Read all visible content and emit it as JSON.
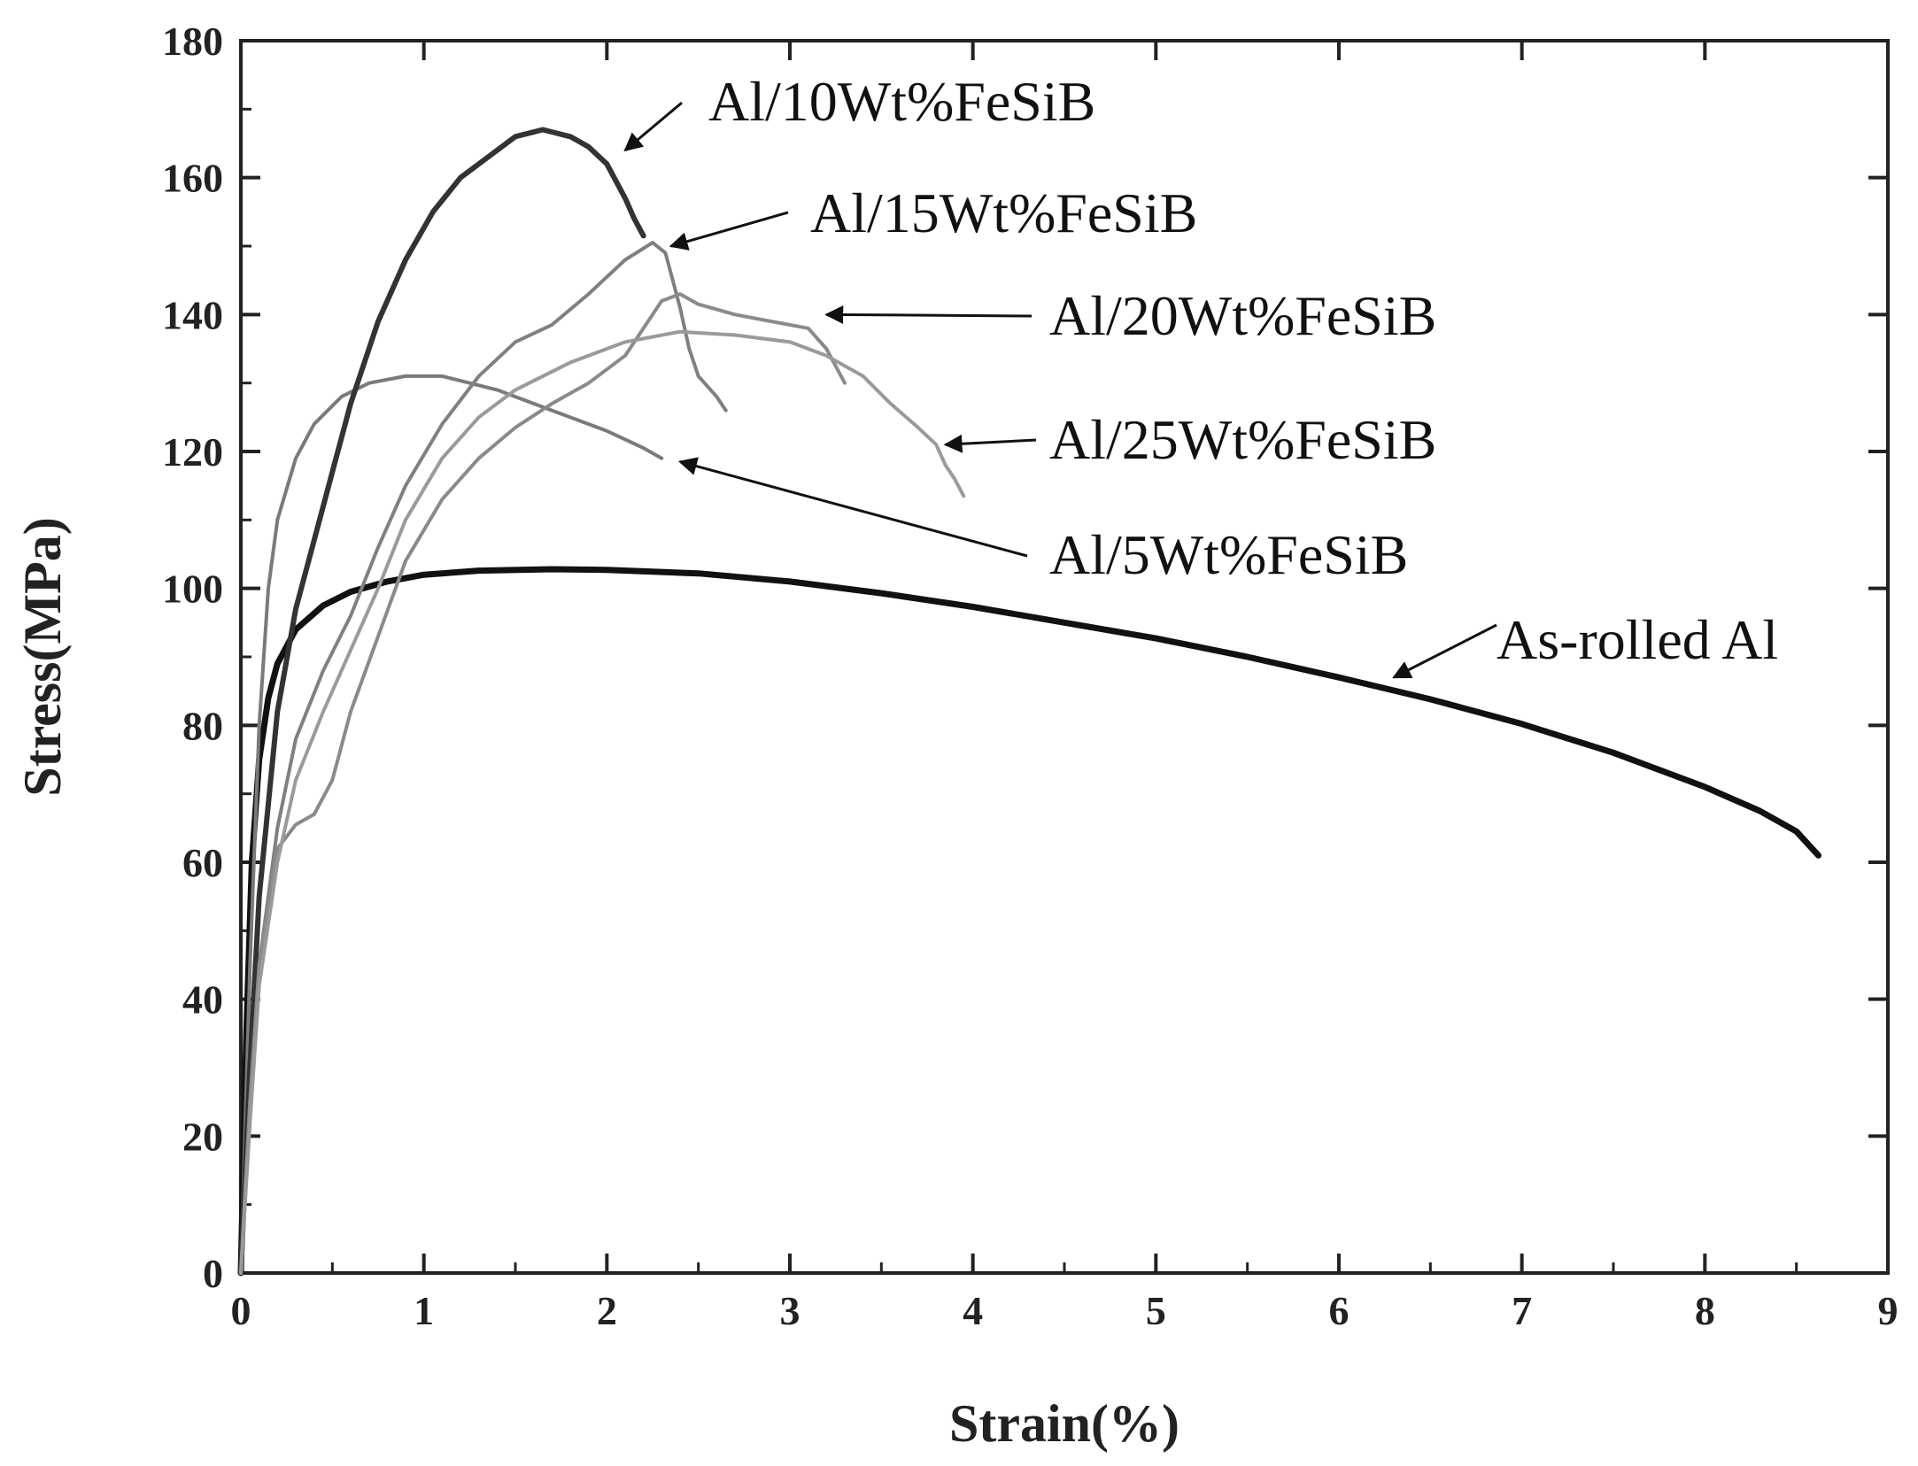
{
  "chart_data": {
    "type": "line",
    "xlabel": "Strain(%)",
    "ylabel": "Stress(MPa)",
    "xlim": [
      0,
      9
    ],
    "ylim": [
      0,
      180
    ],
    "xticks": [
      0,
      1,
      2,
      3,
      4,
      5,
      6,
      7,
      8,
      9
    ],
    "yticks": [
      0,
      20,
      40,
      60,
      80,
      100,
      120,
      140,
      160,
      180
    ],
    "grid": false,
    "legend": "none",
    "series": [
      {
        "name": "As-rolled Al",
        "color": "#111111",
        "x": [
          0,
          0.03,
          0.06,
          0.1,
          0.15,
          0.2,
          0.3,
          0.45,
          0.6,
          0.8,
          1.0,
          1.3,
          1.7,
          2.0,
          2.5,
          3.0,
          3.5,
          4.0,
          4.5,
          5.0,
          5.5,
          6.0,
          6.5,
          7.0,
          7.5,
          8.0,
          8.3,
          8.5,
          8.62
        ],
        "y": [
          0,
          35,
          60,
          75,
          84,
          89,
          94,
          97.5,
          99.5,
          101,
          102,
          102.6,
          102.8,
          102.7,
          102.2,
          101,
          99.3,
          97.3,
          95,
          92.7,
          90,
          87,
          83.8,
          80.2,
          76,
          71,
          67.5,
          64.5,
          61
        ]
      },
      {
        "name": "Al/5Wt%FeSiB",
        "color": "#7a7a7a",
        "x": [
          0,
          0.05,
          0.1,
          0.15,
          0.2,
          0.3,
          0.4,
          0.55,
          0.7,
          0.9,
          1.1,
          1.4,
          1.7,
          2.0,
          2.2,
          2.3
        ],
        "y": [
          0,
          45,
          80,
          100,
          110,
          119,
          124,
          128,
          130,
          131,
          131,
          129,
          126,
          123,
          120.5,
          119
        ]
      },
      {
        "name": "Al/10Wt%FeSiB",
        "color": "#333333",
        "x": [
          0,
          0.05,
          0.1,
          0.2,
          0.3,
          0.4,
          0.5,
          0.6,
          0.75,
          0.9,
          1.05,
          1.2,
          1.35,
          1.5,
          1.65,
          1.8,
          1.9,
          2.0,
          2.1,
          2.15,
          2.2
        ],
        "y": [
          0,
          30,
          55,
          82,
          97,
          107,
          117,
          127,
          139,
          148,
          155,
          160,
          163,
          166,
          167,
          166,
          164.5,
          162,
          157,
          154,
          151.5
        ]
      },
      {
        "name": "Al/15Wt%FeSiB",
        "color": "#808080",
        "x": [
          0,
          0.05,
          0.1,
          0.2,
          0.3,
          0.45,
          0.6,
          0.75,
          0.9,
          1.1,
          1.3,
          1.5,
          1.7,
          1.9,
          2.1,
          2.25,
          2.32,
          2.4,
          2.45,
          2.5,
          2.6,
          2.65
        ],
        "y": [
          0,
          25,
          45,
          65,
          78,
          88,
          96,
          106,
          115,
          124,
          131,
          136,
          138.5,
          143,
          148,
          150.5,
          149,
          141,
          135,
          131,
          128,
          126
        ]
      },
      {
        "name": "Al/20Wt%FeSiB",
        "color": "#8a8a8a",
        "x": [
          0,
          0.05,
          0.1,
          0.2,
          0.3,
          0.4,
          0.5,
          0.6,
          0.75,
          0.9,
          1.1,
          1.3,
          1.5,
          1.7,
          1.9,
          2.1,
          2.2,
          2.3,
          2.4,
          2.5,
          2.7,
          2.9,
          3.1,
          3.2,
          3.3
        ],
        "y": [
          0,
          25,
          45,
          62,
          65.5,
          67,
          72,
          82,
          93,
          104,
          113,
          119,
          123.5,
          127,
          130,
          134,
          138,
          142,
          143,
          141.5,
          140,
          139,
          138,
          135,
          130
        ]
      },
      {
        "name": "Al/25Wt%FeSiB",
        "color": "#9a9a9a",
        "x": [
          0,
          0.05,
          0.1,
          0.2,
          0.3,
          0.45,
          0.6,
          0.75,
          0.9,
          1.1,
          1.3,
          1.5,
          1.8,
          2.1,
          2.4,
          2.7,
          3.0,
          3.2,
          3.4,
          3.55,
          3.7,
          3.8,
          3.85,
          3.9,
          3.95
        ],
        "y": [
          0,
          22,
          42,
          60,
          72,
          82,
          91,
          100,
          110,
          119,
          125,
          129,
          133,
          136,
          137.5,
          137,
          136,
          134,
          131,
          127,
          123.5,
          121,
          118,
          116,
          113.5
        ]
      }
    ],
    "annotations": [
      {
        "text": "Al/10Wt%FeSiB",
        "series": "Al/10Wt%FeSiB",
        "point": [
          2.1,
          164
        ]
      },
      {
        "text": "Al/15Wt%FeSiB",
        "series": "Al/15Wt%FeSiB",
        "point": [
          2.35,
          150
        ]
      },
      {
        "text": "Al/20Wt%FeSiB",
        "series": "Al/20Wt%FeSiB",
        "point": [
          3.2,
          140
        ]
      },
      {
        "text": "Al/25Wt%FeSiB",
        "series": "Al/25Wt%FeSiB",
        "point": [
          3.85,
          121
        ]
      },
      {
        "text": "Al/5Wt%FeSiB",
        "series": "Al/5Wt%FeSiB",
        "point": [
          2.4,
          118.5
        ]
      },
      {
        "text": "As-rolled Al",
        "series": "As-rolled Al",
        "point": [
          6.3,
          87
        ]
      }
    ]
  }
}
